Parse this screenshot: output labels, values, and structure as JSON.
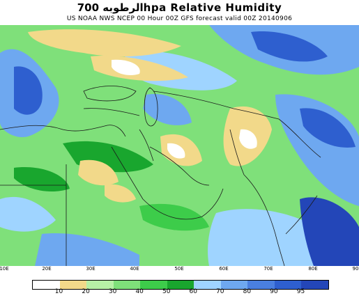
{
  "title": "الرطوبه 700hpa Relative Humidity",
  "subtitle": "US NOAA NWS NCEP 00 Hour 00Z GFS forecast valid 00Z 20140906",
  "x_ticks": [
    "10E",
    "20E",
    "30E",
    "40E",
    "50E",
    "60E",
    "70E",
    "80E",
    "90"
  ],
  "legend": {
    "labels": [
      "10",
      "20",
      "30",
      "40",
      "50",
      "60",
      "70",
      "80",
      "90",
      "95"
    ],
    "colors": [
      "#ffffff",
      "#f2d98a",
      "#b7f0a6",
      "#7fe07a",
      "#3dcc4a",
      "#19a62e",
      "#9fd4ff",
      "#6ea8f0",
      "#4a7fe0",
      "#2e5fcf",
      "#2346b8"
    ]
  },
  "colors": {
    "map_base": "#7fe07a",
    "dry": "#f2d98a",
    "very_dry": "#ffffff",
    "moist": "#6ea8f0",
    "very_moist": "#2e5fcf",
    "border": "#1a1a1a"
  }
}
